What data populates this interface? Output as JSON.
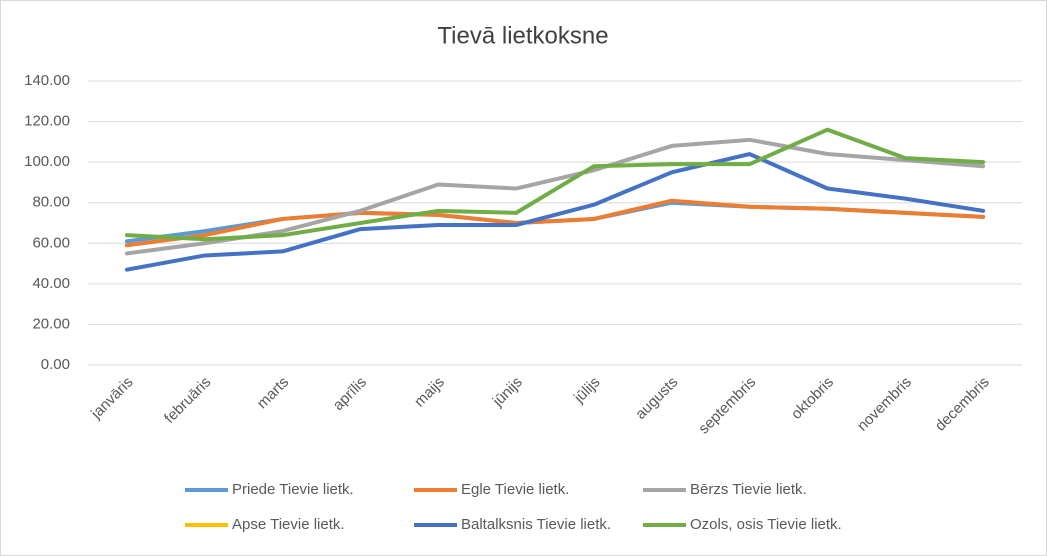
{
  "chart_data": {
    "type": "line",
    "title": "Tievā lietkoksne",
    "categories": [
      "janvāris",
      "februāris",
      "marts",
      "aprīlis",
      "maijs",
      "jūnijs",
      "jūlijs",
      "augusts",
      "septembris",
      "oktobris",
      "novembris",
      "decembris"
    ],
    "series": [
      {
        "name": "Priede Tievie lietk.",
        "color": "#5b9bd5",
        "values": [
          61,
          66,
          72,
          75,
          74,
          70,
          72,
          80,
          78,
          77,
          75,
          73
        ]
      },
      {
        "name": "Egle Tievie lietk.",
        "color": "#ed7d31",
        "values": [
          59,
          64,
          72,
          75,
          74,
          70,
          72,
          81,
          78,
          77,
          75,
          73
        ]
      },
      {
        "name": "Bērzs Tievie lietk.",
        "color": "#a5a5a5",
        "values": [
          55,
          60,
          66,
          76,
          89,
          87,
          96,
          108,
          111,
          104,
          101,
          98
        ]
      },
      {
        "name": "Apse Tievie lietk.",
        "color": "#ffc000",
        "values": [
          null,
          null,
          null,
          null,
          null,
          null,
          null,
          null,
          null,
          null,
          null,
          null
        ]
      },
      {
        "name": "Baltalksnis Tievie lietk.",
        "color": "#4472c4",
        "values": [
          47,
          54,
          56,
          67,
          69,
          69,
          79,
          95,
          104,
          87,
          82,
          76
        ]
      },
      {
        "name": "Ozols, osis Tievie lietk.",
        "color": "#70ad47",
        "values": [
          64,
          62,
          64,
          70,
          76,
          75,
          98,
          99,
          99,
          116,
          102,
          100
        ]
      }
    ],
    "ylim": [
      0,
      140
    ],
    "yticks": [
      {
        "value": 0,
        "label": "0.00"
      },
      {
        "value": 20,
        "label": "20.00"
      },
      {
        "value": 40,
        "label": "40.00"
      },
      {
        "value": 60,
        "label": "60.00"
      },
      {
        "value": 80,
        "label": "80.00"
      },
      {
        "value": 100,
        "label": "100.00"
      },
      {
        "value": 120,
        "label": "120.00"
      },
      {
        "value": 140,
        "label": "140.00"
      }
    ],
    "grid": true,
    "legend": "bottom"
  }
}
